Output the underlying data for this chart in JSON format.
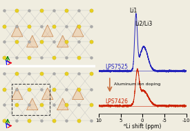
{
  "background_color": "#f0ede0",
  "blue_label": "LPS7525",
  "red_label": "LPS7426",
  "arrow_text": "Aluminum ion doping",
  "peak_labels_top": [
    "Li1",
    "Li2/Li3"
  ],
  "xlabel": "⁶Li shift (ppm)",
  "blue_color": "#2222bb",
  "red_color": "#cc2200",
  "arrow_color": "#c87040"
}
